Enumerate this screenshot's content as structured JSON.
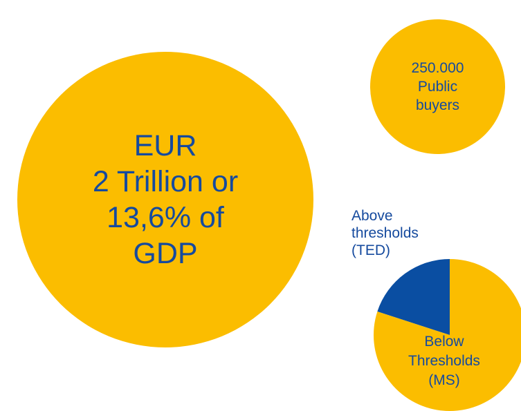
{
  "colors": {
    "bubble_fill": "#fbbd00",
    "text": "#154a9e",
    "slice_above": "#0a4ea2",
    "slice_below": "#fbbd00"
  },
  "bubbles": {
    "big": {
      "lines": [
        "EUR",
        "2 Trillion or",
        "13,6% of",
        "GDP"
      ]
    },
    "small": {
      "lines": [
        "250.000",
        "Public",
        "buyers"
      ]
    }
  },
  "chart_data": {
    "type": "pie",
    "title": "",
    "slices": [
      {
        "label": "Above thresholds (TED)",
        "label_lines": [
          "Above",
          "thresholds",
          "(TED)"
        ],
        "value": 20
      },
      {
        "label": "Below Thresholds (MS)",
        "label_lines": [
          "Below",
          "Thresholds",
          "(MS)"
        ],
        "value": 80
      }
    ],
    "legend": "none"
  }
}
